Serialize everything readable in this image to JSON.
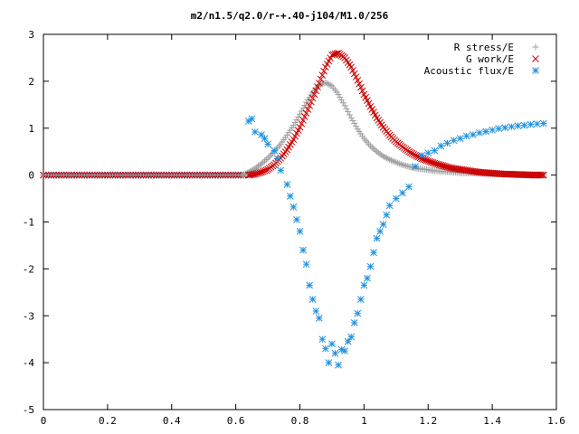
{
  "chart_data": {
    "type": "scatter",
    "title": "m2/n1.5/q2.0/r-+.40-j104/M1.0/256",
    "xlabel": "",
    "ylabel": "",
    "xlim": [
      0,
      1.6
    ],
    "ylim": [
      -5,
      3
    ],
    "x_ticks": [
      "0",
      "0.2",
      "0.4",
      "0.6",
      "0.8",
      "1",
      "1.2",
      "1.4",
      "1.6"
    ],
    "y_ticks": [
      "3",
      "2",
      "1",
      "0",
      "-1",
      "-2",
      "-3",
      "-4",
      "-5"
    ],
    "grid": false,
    "legend_position": "top-right",
    "series": [
      {
        "name": "R stress/E",
        "marker": "+",
        "color": "#a0a0a0",
        "x": [
          0.62,
          0.64,
          0.66,
          0.68,
          0.7,
          0.72,
          0.74,
          0.76,
          0.78,
          0.8,
          0.82,
          0.84,
          0.86,
          0.88,
          0.9,
          0.92,
          0.94,
          0.96,
          0.98,
          1.0,
          1.02,
          1.04,
          1.06,
          1.08,
          1.1,
          1.12,
          1.14,
          1.16,
          1.18,
          1.2,
          1.22,
          1.24,
          1.26,
          1.28,
          1.3,
          1.32,
          1.34,
          1.36,
          1.38,
          1.4,
          1.42,
          1.44,
          1.46,
          1.48,
          1.5,
          1.52,
          1.54,
          1.56
        ],
        "y": [
          0.0,
          0.06,
          0.14,
          0.24,
          0.36,
          0.5,
          0.66,
          0.85,
          1.06,
          1.3,
          1.55,
          1.76,
          1.92,
          1.97,
          1.9,
          1.72,
          1.48,
          1.22,
          0.98,
          0.78,
          0.62,
          0.5,
          0.4,
          0.33,
          0.27,
          0.22,
          0.18,
          0.15,
          0.13,
          0.11,
          0.09,
          0.08,
          0.07,
          0.06,
          0.05,
          0.045,
          0.04,
          0.035,
          0.03,
          0.025,
          0.02,
          0.02,
          0.015,
          0.015,
          0.01,
          0.01,
          0.01,
          0.01
        ]
      },
      {
        "name": "G work/E",
        "marker": "x",
        "color": "#cc0000",
        "x": [
          0.64,
          0.66,
          0.68,
          0.7,
          0.72,
          0.74,
          0.76,
          0.78,
          0.8,
          0.82,
          0.84,
          0.86,
          0.88,
          0.9,
          0.92,
          0.94,
          0.96,
          0.98,
          1.0,
          1.02,
          1.04,
          1.06,
          1.08,
          1.1,
          1.12,
          1.14,
          1.16,
          1.18,
          1.2,
          1.22,
          1.24,
          1.26,
          1.28,
          1.3,
          1.32,
          1.34,
          1.36,
          1.38,
          1.4,
          1.42,
          1.44,
          1.46,
          1.48,
          1.5,
          1.52,
          1.54,
          1.56
        ],
        "y": [
          0.0,
          0.02,
          0.06,
          0.12,
          0.22,
          0.36,
          0.54,
          0.76,
          1.02,
          1.32,
          1.64,
          1.96,
          2.3,
          2.56,
          2.6,
          2.5,
          2.3,
          2.02,
          1.72,
          1.46,
          1.22,
          1.02,
          0.85,
          0.71,
          0.6,
          0.5,
          0.42,
          0.35,
          0.3,
          0.25,
          0.21,
          0.17,
          0.14,
          0.12,
          0.1,
          0.08,
          0.06,
          0.05,
          0.04,
          0.03,
          0.02,
          0.02,
          0.01,
          0.01,
          0.0,
          0.0,
          0.0
        ]
      },
      {
        "name": "Acoustic flux/E",
        "marker": "*",
        "color": "#1e90e0",
        "x": [
          0.64,
          0.65,
          0.66,
          0.68,
          0.69,
          0.7,
          0.72,
          0.73,
          0.74,
          0.76,
          0.77,
          0.78,
          0.79,
          0.8,
          0.81,
          0.82,
          0.83,
          0.84,
          0.85,
          0.86,
          0.87,
          0.88,
          0.89,
          0.9,
          0.91,
          0.92,
          0.93,
          0.94,
          0.95,
          0.96,
          0.97,
          0.98,
          0.99,
          1.0,
          1.01,
          1.02,
          1.03,
          1.04,
          1.05,
          1.06,
          1.07,
          1.08,
          1.1,
          1.12,
          1.14,
          1.16,
          1.18,
          1.2,
          1.22,
          1.24,
          1.26,
          1.28,
          1.3,
          1.32,
          1.34,
          1.36,
          1.38,
          1.4,
          1.42,
          1.44,
          1.46,
          1.48,
          1.5,
          1.52,
          1.54,
          1.56
        ],
        "y": [
          1.15,
          1.2,
          0.92,
          0.86,
          0.78,
          0.66,
          0.52,
          0.35,
          0.1,
          -0.2,
          -0.45,
          -0.68,
          -0.95,
          -1.2,
          -1.6,
          -1.9,
          -2.35,
          -2.65,
          -2.9,
          -3.05,
          -3.5,
          -3.7,
          -4.0,
          -3.6,
          -3.8,
          -4.05,
          -3.72,
          -3.75,
          -3.55,
          -3.45,
          -3.15,
          -2.95,
          -2.65,
          -2.35,
          -2.2,
          -1.95,
          -1.65,
          -1.35,
          -1.2,
          -1.05,
          -0.85,
          -0.65,
          -0.5,
          -0.38,
          -0.25,
          0.18,
          0.42,
          0.47,
          0.52,
          0.62,
          0.68,
          0.74,
          0.78,
          0.83,
          0.86,
          0.9,
          0.93,
          0.96,
          0.99,
          1.01,
          1.03,
          1.05,
          1.06,
          1.08,
          1.09,
          1.1
        ]
      }
    ]
  }
}
